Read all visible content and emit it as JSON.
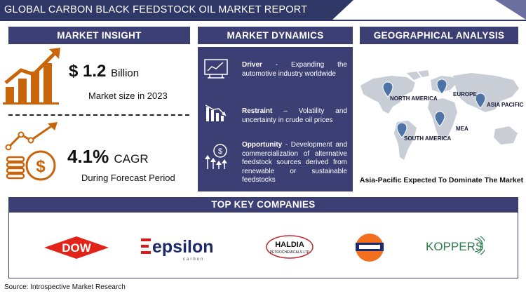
{
  "header": {
    "title": "GLOBAL CARBON BLACK FEEDSTOCK OIL  MARKET REPORT"
  },
  "market_insight": {
    "heading": "MARKET INSIGHT",
    "size_value": "$ 1.2",
    "size_unit": "Billion",
    "size_caption": "Market size in 2023",
    "cagr_value": "4.1%",
    "cagr_unit": "CAGR",
    "cagr_caption": "During Forecast Period"
  },
  "market_dynamics": {
    "heading": "MARKET DYNAMICS",
    "items": [
      {
        "label": "Driver",
        "text": "- Expanding the automotive industry worldwide",
        "icon": "chart-screen-icon"
      },
      {
        "label": "Restraint",
        "text": "– Volatility and uncertainty in crude oil prices",
        "icon": "declining-chart-icon"
      },
      {
        "label": "Opportunity",
        "text": "- Development and commercialization of alternative feedstock sources derived from renewable or sustainable feedstocks",
        "icon": "growth-opportunity-icon"
      }
    ]
  },
  "geographical_analysis": {
    "heading": "GEOGRAPHICAL ANALYSIS",
    "regions": [
      "NORTH AMERICA",
      "EUROPE",
      "ASIA PACIFIC",
      "MEA",
      "SOUTH AMERICA"
    ],
    "caption": "Asia-Pacific Expected To Dominate The Market"
  },
  "top_companies": {
    "heading": "TOP KEY COMPANIES",
    "logos": {
      "dow": "DOW",
      "epsilon_main": "epsilon",
      "epsilon_sub": "carbon",
      "haldia_main": "HALDIA",
      "haldia_sub": "PETROCHEMICALS LTD",
      "koppers": "KOPPERS"
    }
  },
  "footer": {
    "source": "Source: Introspective Market Research"
  },
  "colors": {
    "navy": "#2f3767",
    "panel": "#3b3f73",
    "accent_orange": "#c8640a",
    "dow_red": "#e2231a",
    "koppers_green": "#2e7d4f"
  }
}
